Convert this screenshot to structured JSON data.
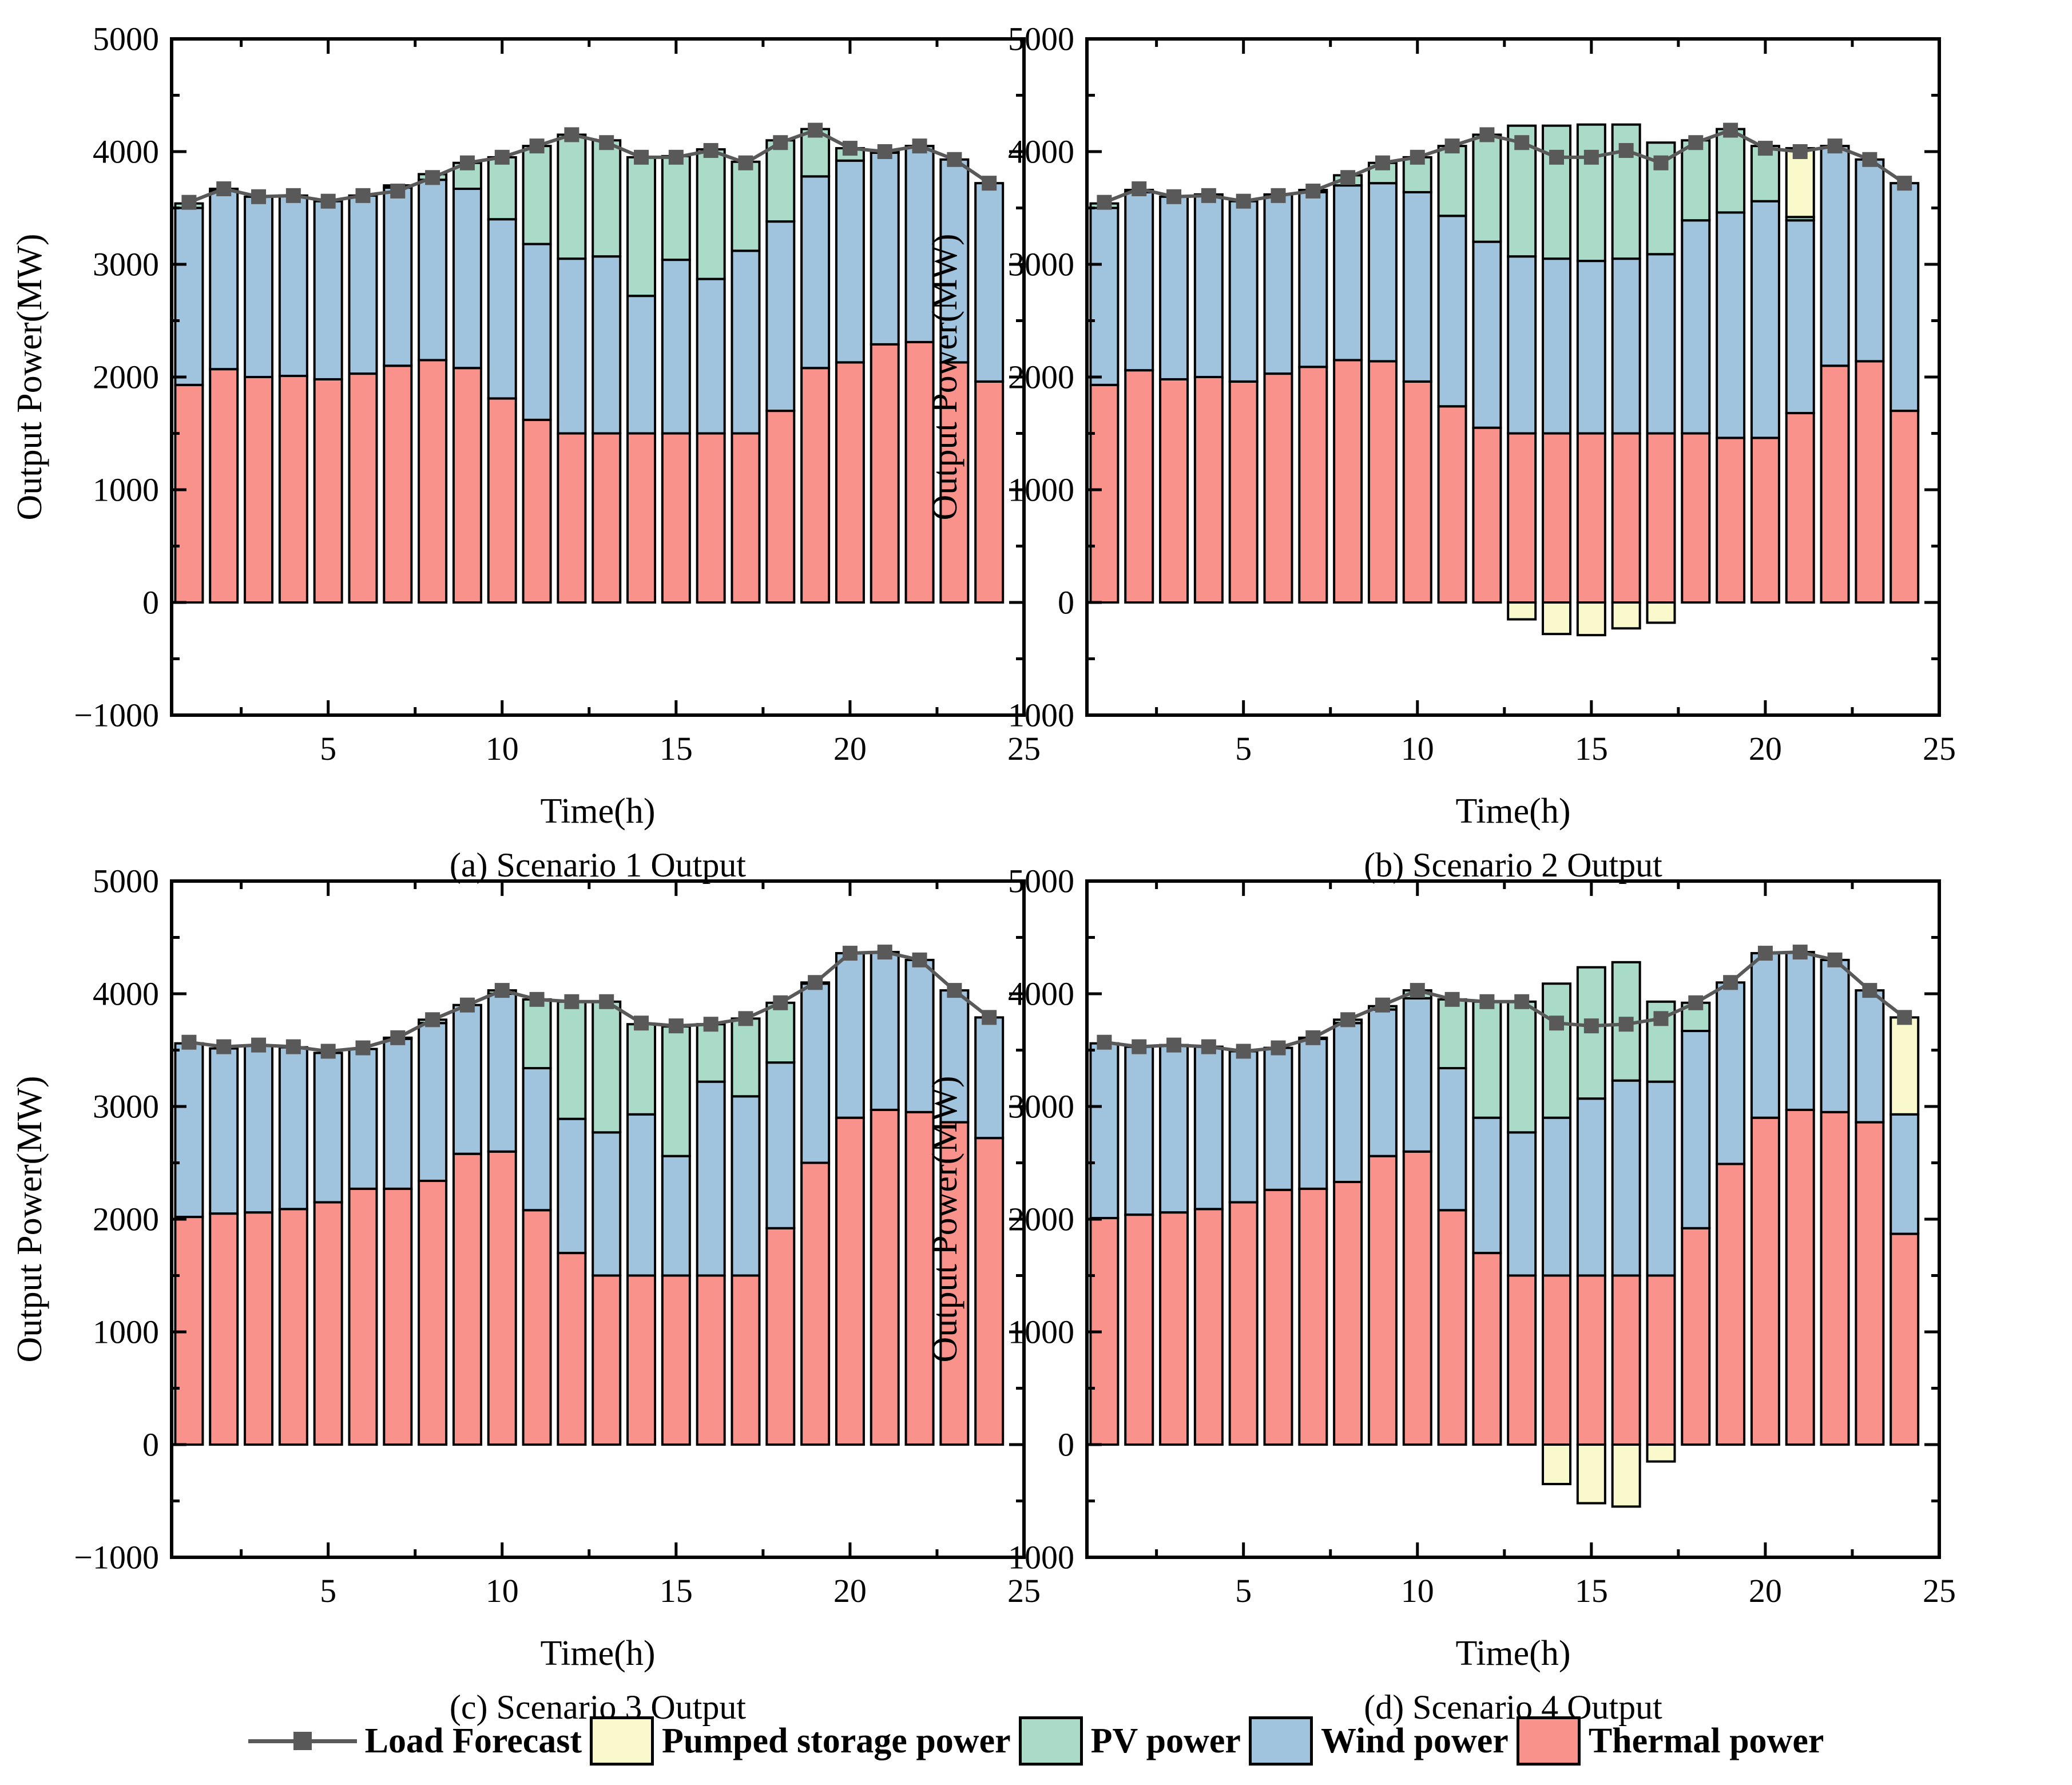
{
  "figure": {
    "background": "#ffffff",
    "ylabel": "Output Power(MW)",
    "xlabel": "Time(h)",
    "colors": {
      "load_forecast": "#595959",
      "pumped_storage": "#FAF9CC",
      "pv": "#AADBC8",
      "wind": "#A0C3DE",
      "thermal": "#F9928A",
      "bar_edge": "#000000",
      "frame": "#000000"
    },
    "legend": [
      {
        "key": "load_forecast",
        "label": "Load Forecast",
        "type": "line"
      },
      {
        "key": "pumped_storage",
        "label": "Pumped storage power",
        "type": "patch"
      },
      {
        "key": "pv",
        "label": "PV power",
        "type": "patch"
      },
      {
        "key": "wind",
        "label": "Wind power",
        "type": "patch"
      },
      {
        "key": "thermal",
        "label": "Thermal power",
        "type": "patch"
      }
    ]
  },
  "chart_data": [
    {
      "id": "a",
      "type": "bar",
      "stacked": true,
      "title": "(a) Scenario 1 Output",
      "xlabel": "Time(h)",
      "ylabel": "Output Power(MW)",
      "xlim": [
        0.5,
        25
      ],
      "ylim": [
        -1000,
        5000
      ],
      "x_ticks": [
        5,
        10,
        15,
        20,
        25
      ],
      "y_ticks": [
        5000,
        4000,
        3000,
        2000,
        1000,
        0,
        -1000
      ],
      "x_minor_step": 2.5,
      "y_minor_step": 500,
      "categories": [
        1,
        2,
        3,
        4,
        5,
        6,
        7,
        8,
        9,
        10,
        11,
        12,
        13,
        14,
        15,
        16,
        17,
        18,
        19,
        20,
        21,
        22,
        23,
        24
      ],
      "series": [
        {
          "key": "thermal",
          "name": "Thermal power",
          "values": [
            1930,
            2070,
            2000,
            2010,
            1980,
            2030,
            2100,
            2150,
            2080,
            1810,
            1620,
            1500,
            1500,
            1500,
            1500,
            1500,
            1500,
            1700,
            2080,
            2130,
            2290,
            2310,
            2130,
            1960
          ]
        },
        {
          "key": "wind",
          "name": "Wind power",
          "values": [
            1570,
            1580,
            1600,
            1600,
            1580,
            1580,
            1580,
            1600,
            1590,
            1590,
            1560,
            1550,
            1570,
            1220,
            1540,
            1370,
            1620,
            1680,
            1700,
            1790,
            1700,
            1740,
            1800,
            1760
          ]
        },
        {
          "key": "pv",
          "name": "PV power",
          "values": [
            40,
            20,
            0,
            0,
            0,
            0,
            20,
            50,
            230,
            550,
            870,
            1100,
            1030,
            1230,
            920,
            1150,
            790,
            720,
            420,
            110,
            10,
            0,
            0,
            0
          ]
        },
        {
          "key": "pumped_storage",
          "name": "Pumped storage power",
          "values": [
            0,
            0,
            0,
            0,
            0,
            0,
            0,
            0,
            0,
            0,
            0,
            0,
            0,
            0,
            0,
            0,
            0,
            0,
            0,
            0,
            0,
            0,
            0,
            0
          ]
        }
      ],
      "line": {
        "key": "load_forecast",
        "name": "Load Forecast",
        "values": [
          3550,
          3670,
          3600,
          3610,
          3560,
          3610,
          3650,
          3770,
          3900,
          3950,
          4050,
          4150,
          4080,
          3950,
          3950,
          4010,
          3900,
          4080,
          4190,
          4030,
          4000,
          4050,
          3930,
          3720
        ]
      }
    },
    {
      "id": "b",
      "type": "bar",
      "stacked": true,
      "title": "(b) Scenario 2 Output",
      "xlabel": "Time(h)",
      "ylabel": "Output Power(MW)",
      "xlim": [
        0.5,
        25
      ],
      "ylim": [
        -1000,
        5000
      ],
      "x_ticks": [
        5,
        10,
        15,
        20,
        25
      ],
      "y_ticks": [
        5000,
        4000,
        3000,
        2000,
        1000,
        0,
        -1000
      ],
      "x_minor_step": 2.5,
      "y_minor_step": 500,
      "categories": [
        1,
        2,
        3,
        4,
        5,
        6,
        7,
        8,
        9,
        10,
        11,
        12,
        13,
        14,
        15,
        16,
        17,
        18,
        19,
        20,
        21,
        22,
        23,
        24
      ],
      "series": [
        {
          "key": "thermal",
          "name": "Thermal power",
          "values": [
            1930,
            2060,
            1980,
            2000,
            1960,
            2030,
            2090,
            2150,
            2140,
            1960,
            1740,
            1550,
            1500,
            1500,
            1500,
            1500,
            1500,
            1500,
            1460,
            1460,
            1680,
            2100,
            2140,
            1700
          ]
        },
        {
          "key": "wind",
          "name": "Wind power",
          "values": [
            1570,
            1580,
            1620,
            1620,
            1600,
            1590,
            1550,
            1550,
            1580,
            1680,
            1690,
            1650,
            1570,
            1550,
            1530,
            1550,
            1590,
            1890,
            2000,
            2100,
            1710,
            1950,
            1790,
            2020
          ]
        },
        {
          "key": "pv",
          "name": "PV power",
          "values": [
            40,
            20,
            0,
            0,
            0,
            0,
            20,
            90,
            180,
            310,
            620,
            950,
            1160,
            1180,
            1210,
            1190,
            990,
            710,
            740,
            490,
            30,
            0,
            0,
            0
          ]
        },
        {
          "key": "pumped_storage",
          "name": "Pumped storage power",
          "values": [
            0,
            0,
            0,
            0,
            0,
            0,
            0,
            0,
            0,
            0,
            0,
            0,
            -150,
            -280,
            -290,
            -230,
            -180,
            0,
            0,
            0,
            610,
            0,
            0,
            0
          ]
        }
      ],
      "line": {
        "key": "load_forecast",
        "name": "Load Forecast",
        "values": [
          3550,
          3670,
          3600,
          3610,
          3560,
          3610,
          3650,
          3770,
          3900,
          3950,
          4050,
          4150,
          4080,
          3950,
          3950,
          4010,
          3900,
          4080,
          4190,
          4030,
          4000,
          4050,
          3930,
          3720
        ]
      }
    },
    {
      "id": "c",
      "type": "bar",
      "stacked": true,
      "title": "(c) Scenario 3 Output",
      "xlabel": "Time(h)",
      "ylabel": "Output Power(MW)",
      "xlim": [
        0.5,
        25
      ],
      "ylim": [
        -1000,
        5000
      ],
      "x_ticks": [
        5,
        10,
        15,
        20,
        25
      ],
      "y_ticks": [
        5000,
        4000,
        3000,
        2000,
        1000,
        0,
        -1000
      ],
      "x_minor_step": 2.5,
      "y_minor_step": 500,
      "categories": [
        1,
        2,
        3,
        4,
        5,
        6,
        7,
        8,
        9,
        10,
        11,
        12,
        13,
        14,
        15,
        16,
        17,
        18,
        19,
        20,
        21,
        22,
        23,
        24
      ],
      "series": [
        {
          "key": "thermal",
          "name": "Thermal power",
          "values": [
            2020,
            2050,
            2060,
            2090,
            2150,
            2270,
            2270,
            2340,
            2580,
            2600,
            2080,
            1700,
            1500,
            1500,
            1500,
            1500,
            1500,
            1920,
            2500,
            2900,
            2970,
            2950,
            2860,
            2720
          ]
        },
        {
          "key": "wind",
          "name": "Wind power",
          "values": [
            1540,
            1465,
            1480,
            1435,
            1325,
            1240,
            1330,
            1400,
            1320,
            1400,
            1260,
            1190,
            1270,
            1430,
            1060,
            1720,
            1590,
            1470,
            1590,
            1460,
            1400,
            1350,
            1170,
            1070
          ]
        },
        {
          "key": "pv",
          "name": "PV power",
          "values": [
            0,
            0,
            0,
            0,
            0,
            0,
            10,
            30,
            0,
            30,
            610,
            1040,
            1160,
            800,
            1150,
            510,
            690,
            530,
            10,
            0,
            0,
            0,
            0,
            0
          ]
        },
        {
          "key": "pumped_storage",
          "name": "Pumped storage power",
          "values": [
            0,
            0,
            0,
            0,
            0,
            0,
            0,
            0,
            0,
            0,
            0,
            0,
            0,
            0,
            0,
            0,
            0,
            0,
            0,
            0,
            0,
            0,
            0,
            0
          ]
        }
      ],
      "line": {
        "key": "load_forecast",
        "name": "Load Forecast",
        "values": [
          3570,
          3530,
          3545,
          3530,
          3490,
          3520,
          3610,
          3770,
          3900,
          4030,
          3950,
          3930,
          3930,
          3740,
          3715,
          3730,
          3780,
          3920,
          4100,
          4360,
          4370,
          4300,
          4030,
          3790
        ]
      }
    },
    {
      "id": "d",
      "type": "bar",
      "stacked": true,
      "title": "(d) Scenario 4 Output",
      "xlabel": "Time(h)",
      "ylabel": "Output Power(MW)",
      "xlim": [
        0.5,
        25
      ],
      "ylim": [
        -1000,
        5000
      ],
      "x_ticks": [
        5,
        10,
        15,
        20,
        25
      ],
      "y_ticks": [
        5000,
        4000,
        3000,
        2000,
        1000,
        0,
        -1000
      ],
      "x_minor_step": 2.5,
      "y_minor_step": 500,
      "categories": [
        1,
        2,
        3,
        4,
        5,
        6,
        7,
        8,
        9,
        10,
        11,
        12,
        13,
        14,
        15,
        16,
        17,
        18,
        19,
        20,
        21,
        22,
        23,
        24
      ],
      "series": [
        {
          "key": "thermal",
          "name": "Thermal power",
          "values": [
            2010,
            2040,
            2060,
            2090,
            2150,
            2260,
            2270,
            2330,
            2560,
            2600,
            2080,
            1700,
            1500,
            1500,
            1500,
            1500,
            1500,
            1920,
            2490,
            2900,
            2970,
            2950,
            2860,
            1870
          ]
        },
        {
          "key": "wind",
          "name": "Wind power",
          "values": [
            1550,
            1490,
            1485,
            1440,
            1340,
            1260,
            1330,
            1410,
            1300,
            1360,
            1260,
            1200,
            1270,
            1400,
            1570,
            1730,
            1720,
            1750,
            1610,
            1460,
            1400,
            1350,
            1170,
            1060
          ]
        },
        {
          "key": "pv",
          "name": "PV power",
          "values": [
            0,
            0,
            0,
            0,
            0,
            0,
            10,
            30,
            30,
            70,
            610,
            1030,
            1160,
            1190,
            1165,
            1050,
            710,
            250,
            0,
            0,
            0,
            0,
            0,
            0
          ]
        },
        {
          "key": "pumped_storage",
          "name": "Pumped storage power",
          "values": [
            0,
            0,
            0,
            0,
            0,
            0,
            0,
            0,
            0,
            0,
            0,
            0,
            0,
            -350,
            -520,
            -550,
            -150,
            0,
            0,
            0,
            0,
            0,
            0,
            860
          ]
        }
      ],
      "line": {
        "key": "load_forecast",
        "name": "Load Forecast",
        "values": [
          3570,
          3530,
          3545,
          3530,
          3490,
          3520,
          3610,
          3770,
          3900,
          4030,
          3950,
          3930,
          3930,
          3740,
          3715,
          3730,
          3780,
          3920,
          4100,
          4360,
          4370,
          4300,
          4030,
          3790
        ]
      }
    }
  ]
}
